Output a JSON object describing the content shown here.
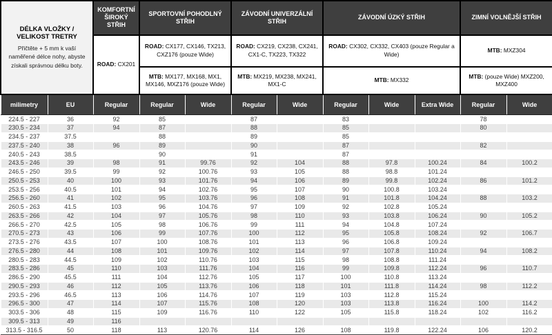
{
  "info": {
    "title": "DÉLKA VLOŽKY / VELIKOST TRETRY",
    "description": "Přičtěte + 5 mm k vaší naměřené délce nohy, abyste získali správnou délku boty."
  },
  "groups": {
    "komfortni": {
      "title": "KOMFORTNÍ ŠIROKÝ STŘIH",
      "road_label": "ROAD:",
      "road_models": "CX201"
    },
    "sportovni": {
      "title": "SPORTOVNÍ POHODLNÝ STŘIH",
      "road_label": "ROAD:",
      "road_models": "CX177, CX146, TX213, CXZ176 (pouze Wide)",
      "mtb_label": "MTB:",
      "mtb_models": "MX177, MX168, MX1, MX146, MXZ176 (pouze Wide)"
    },
    "zavodni_univerzalni": {
      "title": "ZÁVODNÍ UNIVERZÁLNÍ STŘIH",
      "road_label": "ROAD:",
      "road_models": "CX219, CX238, CX241, CX1-C, TX223, TX322",
      "mtb_label": "MTB:",
      "mtb_models": "MX219, MX238, MX241, MX1-C"
    },
    "zavodni_uzky": {
      "title": "ZÁVODNÍ ÚZKÝ STŘIH",
      "road_label": "ROAD:",
      "road_models": "CX302, CX332, CX403 (pouze Regular a Wide)",
      "mtb_label": "MTB:",
      "mtb_models": "MX332"
    },
    "zimni": {
      "title": "ZIMNÍ VOLNĚJŠÍ STŘIH",
      "mtb1_label": "MTB:",
      "mtb1_models": "MXZ304",
      "mtb2_label": "MTB:",
      "mtb2_models": "(pouze Wide) MXZ200, MXZ400"
    }
  },
  "table": {
    "columns": [
      "milimetry",
      "EU",
      "Regular",
      "Regular",
      "Wide",
      "Regular",
      "Wide",
      "Regular",
      "Wide",
      "Extra Wide",
      "Regular",
      "Wide"
    ],
    "rows": [
      [
        "224.5 - 227",
        "36",
        "92",
        "85",
        null,
        "87",
        null,
        "83",
        null,
        null,
        "78",
        null
      ],
      [
        "230.5 - 234",
        "37",
        "94",
        "87",
        null,
        "88",
        null,
        "85",
        null,
        null,
        "80",
        null
      ],
      [
        "234.5 - 237",
        "37.5",
        null,
        "88",
        null,
        "89",
        null,
        "85",
        null,
        null,
        null,
        null
      ],
      [
        "237.5 - 240",
        "38",
        "96",
        "89",
        null,
        "90",
        null,
        "87",
        null,
        null,
        "82",
        null
      ],
      [
        "240.5 - 243",
        "38.5",
        null,
        "90",
        null,
        "91",
        null,
        "87",
        null,
        null,
        null,
        null
      ],
      [
        "243.5 - 246",
        "39",
        "98",
        "91",
        "99.76",
        "92",
        "104",
        "88",
        "97.8",
        "100.24",
        "84",
        "100.2"
      ],
      [
        "246.5 - 250",
        "39.5",
        "99",
        "92",
        "100.76",
        "93",
        "105",
        "88",
        "98.8",
        "101.24",
        null,
        null
      ],
      [
        "250.5 - 253",
        "40",
        "100",
        "93",
        "101.76",
        "94",
        "106",
        "89",
        "99.8",
        "102.24",
        "86",
        "101.2"
      ],
      [
        "253.5 - 256",
        "40.5",
        "101",
        "94",
        "102.76",
        "95",
        "107",
        "90",
        "100.8",
        "103.24",
        null,
        null
      ],
      [
        "256.5 - 260",
        "41",
        "102",
        "95",
        "103.76",
        "96",
        "108",
        "91",
        "101.8",
        "104.24",
        "88",
        "103.2"
      ],
      [
        "260.5 - 263",
        "41.5",
        "103",
        "96",
        "104.76",
        "97",
        "109",
        "92",
        "102.8",
        "105.24",
        null,
        null
      ],
      [
        "263.5 - 266",
        "42",
        "104",
        "97",
        "105.76",
        "98",
        "110",
        "93",
        "103.8",
        "106.24",
        "90",
        "105.2"
      ],
      [
        "266.5 - 270",
        "42.5",
        "105",
        "98",
        "106.76",
        "99",
        "111",
        "94",
        "104.8",
        "107.24",
        null,
        null
      ],
      [
        "270.5 - 273",
        "43",
        "106",
        "99",
        "107.76",
        "100",
        "112",
        "95",
        "105.8",
        "108.24",
        "92",
        "106.7"
      ],
      [
        "273.5 - 276",
        "43.5",
        "107",
        "100",
        "108.76",
        "101",
        "113",
        "96",
        "106.8",
        "109.24",
        null,
        null
      ],
      [
        "276.5 - 280",
        "44",
        "108",
        "101",
        "109.76",
        "102",
        "114",
        "97",
        "107.8",
        "110.24",
        "94",
        "108.2"
      ],
      [
        "280.5 - 283",
        "44.5",
        "109",
        "102",
        "110.76",
        "103",
        "115",
        "98",
        "108.8",
        "111.24",
        null,
        null
      ],
      [
        "283.5 - 286",
        "45",
        "110",
        "103",
        "111.76",
        "104",
        "116",
        "99",
        "109.8",
        "112.24",
        "96",
        "110.7"
      ],
      [
        "286.5 - 290",
        "45.5",
        "111",
        "104",
        "112.76",
        "105",
        "117",
        "100",
        "110.8",
        "113.24",
        null,
        null
      ],
      [
        "290.5 - 293",
        "46",
        "112",
        "105",
        "113.76",
        "106",
        "118",
        "101",
        "111.8",
        "114.24",
        "98",
        "112.2"
      ],
      [
        "293.5 - 296",
        "46.5",
        "113",
        "106",
        "114.76",
        "107",
        "119",
        "103",
        "112.8",
        "115.24",
        null,
        null
      ],
      [
        "296.5 - 300",
        "47",
        "114",
        "107",
        "115.76",
        "108",
        "120",
        "103",
        "113.8",
        "116.24",
        "100",
        "114.2"
      ],
      [
        "303.5 - 306",
        "48",
        "115",
        "109",
        "116.76",
        "110",
        "122",
        "105",
        "115.8",
        "118.24",
        "102",
        "116.2"
      ],
      [
        "309.5 - 313",
        "49",
        "116",
        null,
        null,
        null,
        null,
        null,
        null,
        null,
        null,
        null
      ],
      [
        "313.5 - 316.5",
        "50",
        "118",
        "113",
        "120.76",
        "114",
        "126",
        "108",
        "119.8",
        "122.24",
        "106",
        "120.2"
      ]
    ]
  },
  "colors": {
    "header_bg": "#3f3f3f",
    "stripe": "#e9e9e9",
    "info_bg": "#f2f2f2"
  }
}
